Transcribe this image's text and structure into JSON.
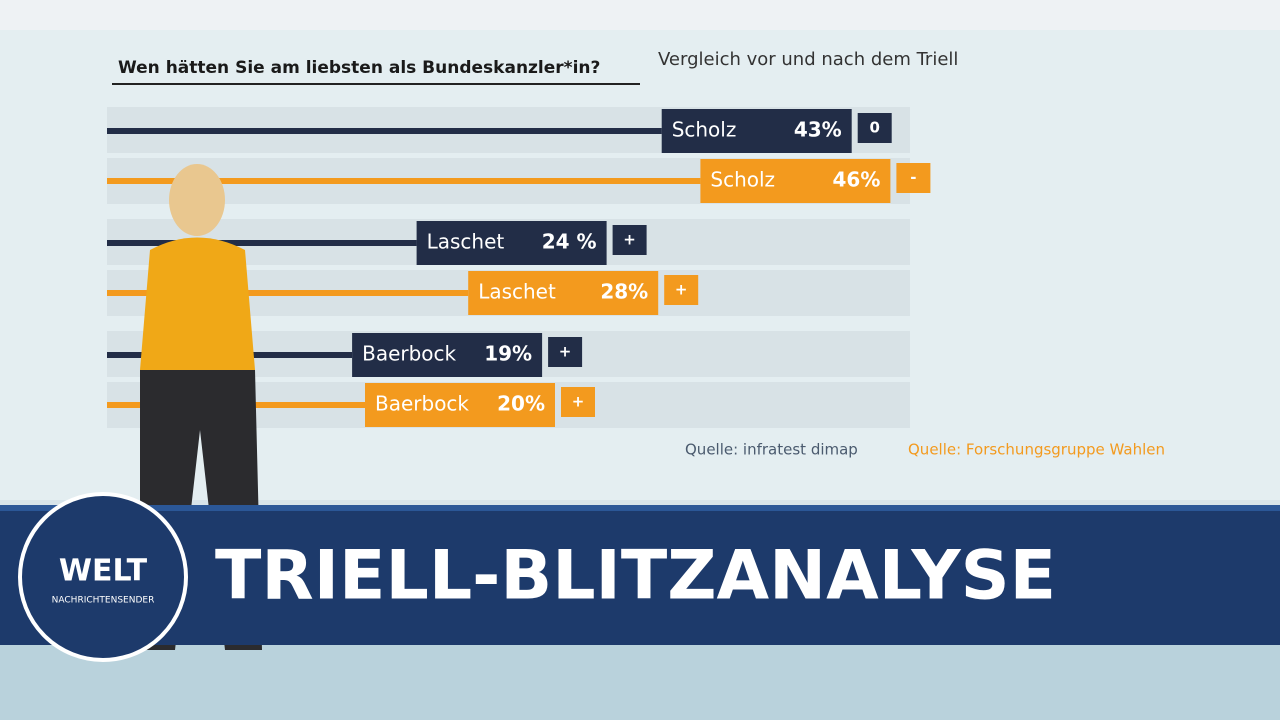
{
  "chart_data": {
    "type": "bar",
    "title": "Wen hätten Sie am liebsten als Bundeskanzler*in?",
    "subtitle": "Vergleich vor und nach dem Triell",
    "categories": [
      "Scholz",
      "Laschet",
      "Baerbock"
    ],
    "series": [
      {
        "name": "Quelle: infratest dimap",
        "color": "#222d47",
        "values": [
          43,
          24,
          19
        ],
        "value_labels": [
          "43%",
          "24 %",
          "19%"
        ],
        "changes": [
          "0",
          "+",
          "+"
        ]
      },
      {
        "name": "Quelle: Forschungsgruppe Wahlen",
        "color": "#f39a1e",
        "values": [
          46,
          28,
          20
        ],
        "value_labels": [
          "46%",
          "28%",
          "20%"
        ],
        "changes": [
          "-",
          "+",
          "+"
        ]
      }
    ]
  },
  "banner": {
    "headline": "TRIELL-BLITZANALYSE",
    "logo": "WELT",
    "logo_subtitle": "NACHRICHTENSENDER"
  }
}
